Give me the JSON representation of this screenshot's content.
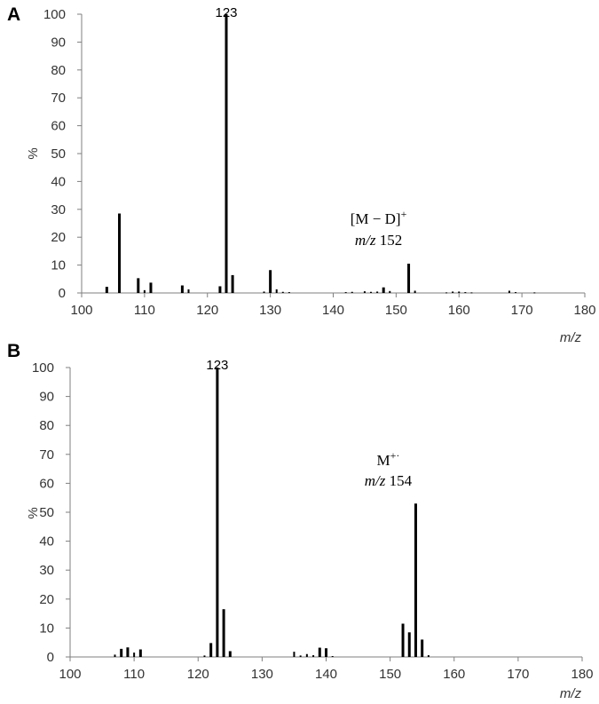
{
  "chart_data": [
    {
      "type": "bar",
      "panel_label": "A",
      "xlabel": "m/z",
      "ylabel": "%",
      "xlim": [
        100,
        180
      ],
      "ylim": [
        0,
        100
      ],
      "xticks": [
        "100",
        "110",
        "120",
        "130",
        "140",
        "150",
        "160",
        "170",
        "180"
      ],
      "yticks": [
        "0",
        "10",
        "20",
        "30",
        "40",
        "50",
        "60",
        "70",
        "80",
        "90",
        "100"
      ],
      "grid": false,
      "annotations": [
        {
          "text": "123",
          "x": 123,
          "y": 100
        },
        {
          "line1": "[M − D]",
          "line1_sup": "+",
          "line2_it": "m/z",
          "line2_val": "152",
          "x": 152,
          "y": 10.5
        }
      ],
      "series": [
        {
          "x": [
            104,
            106,
            109,
            110,
            111,
            116,
            117,
            122,
            123,
            124,
            129,
            130,
            131,
            132,
            133,
            142,
            143,
            145,
            146,
            147,
            148,
            149,
            152,
            153,
            158,
            159,
            160,
            161,
            162,
            168,
            169,
            172
          ],
          "values": [
            2.2,
            28.5,
            5.3,
            1.0,
            3.7,
            2.7,
            1.3,
            2.4,
            100,
            6.4,
            0.5,
            8.2,
            1.3,
            0.4,
            0.3,
            0.3,
            0.4,
            0.6,
            0.4,
            0.5,
            2.0,
            0.7,
            10.5,
            0.8,
            0.2,
            0.5,
            0.5,
            0.3,
            0.2,
            0.8,
            0.3,
            0.2
          ]
        }
      ]
    },
    {
      "type": "bar",
      "panel_label": "B",
      "xlabel": "m/z",
      "ylabel": "%",
      "xlim": [
        100,
        180
      ],
      "ylim": [
        0,
        100
      ],
      "xticks": [
        "100",
        "110",
        "120",
        "130",
        "140",
        "150",
        "160",
        "170",
        "180"
      ],
      "yticks": [
        "0",
        "10",
        "20",
        "30",
        "40",
        "50",
        "60",
        "70",
        "80",
        "90",
        "100"
      ],
      "grid": false,
      "annotations": [
        {
          "text": "123",
          "x": 123,
          "y": 100
        },
        {
          "line1": "M",
          "line1_sup": "+·",
          "line2_it": "m/z",
          "line2_val": "154",
          "x": 154,
          "y": 53
        }
      ],
      "series": [
        {
          "x": [
            107,
            108,
            109,
            110,
            111,
            121,
            122,
            123,
            124,
            125,
            135,
            136,
            137,
            138,
            139,
            140,
            141,
            152,
            153,
            154,
            155,
            156
          ],
          "values": [
            0.8,
            2.8,
            3.3,
            1.5,
            2.6,
            0.5,
            4.8,
            100,
            16.5,
            2.0,
            1.8,
            0.5,
            1.0,
            0.6,
            3.2,
            3.0,
            0.3,
            11.5,
            8.5,
            53,
            6.0,
            0.6
          ]
        }
      ]
    }
  ]
}
